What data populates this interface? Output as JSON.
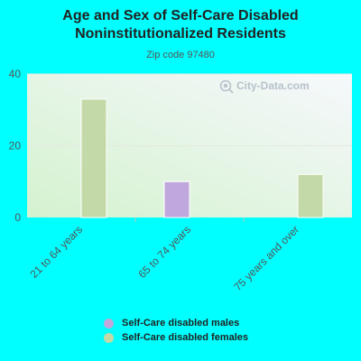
{
  "chart_data": {
    "type": "bar",
    "title": "Age and Sex of Self-Care Disabled Noninstitutionalized Residents",
    "subtitle": "Zip code 97480",
    "categories": [
      "21 to 64 years",
      "65 to 74 years",
      "75 years and over"
    ],
    "series": [
      {
        "name": "Self-Care disabled males",
        "values": [
          0,
          10,
          0
        ],
        "color": "#c0a8dc"
      },
      {
        "name": "Self-Care disabled females",
        "values": [
          33,
          0,
          12
        ],
        "color": "#c3d9a7"
      }
    ],
    "yticks": [
      0,
      20,
      40
    ],
    "ylim": [
      0,
      40
    ],
    "grid": true,
    "legend_position": "bottom"
  },
  "watermark": {
    "text": "City-Data.com",
    "icon": "magnifier-globe-icon"
  }
}
